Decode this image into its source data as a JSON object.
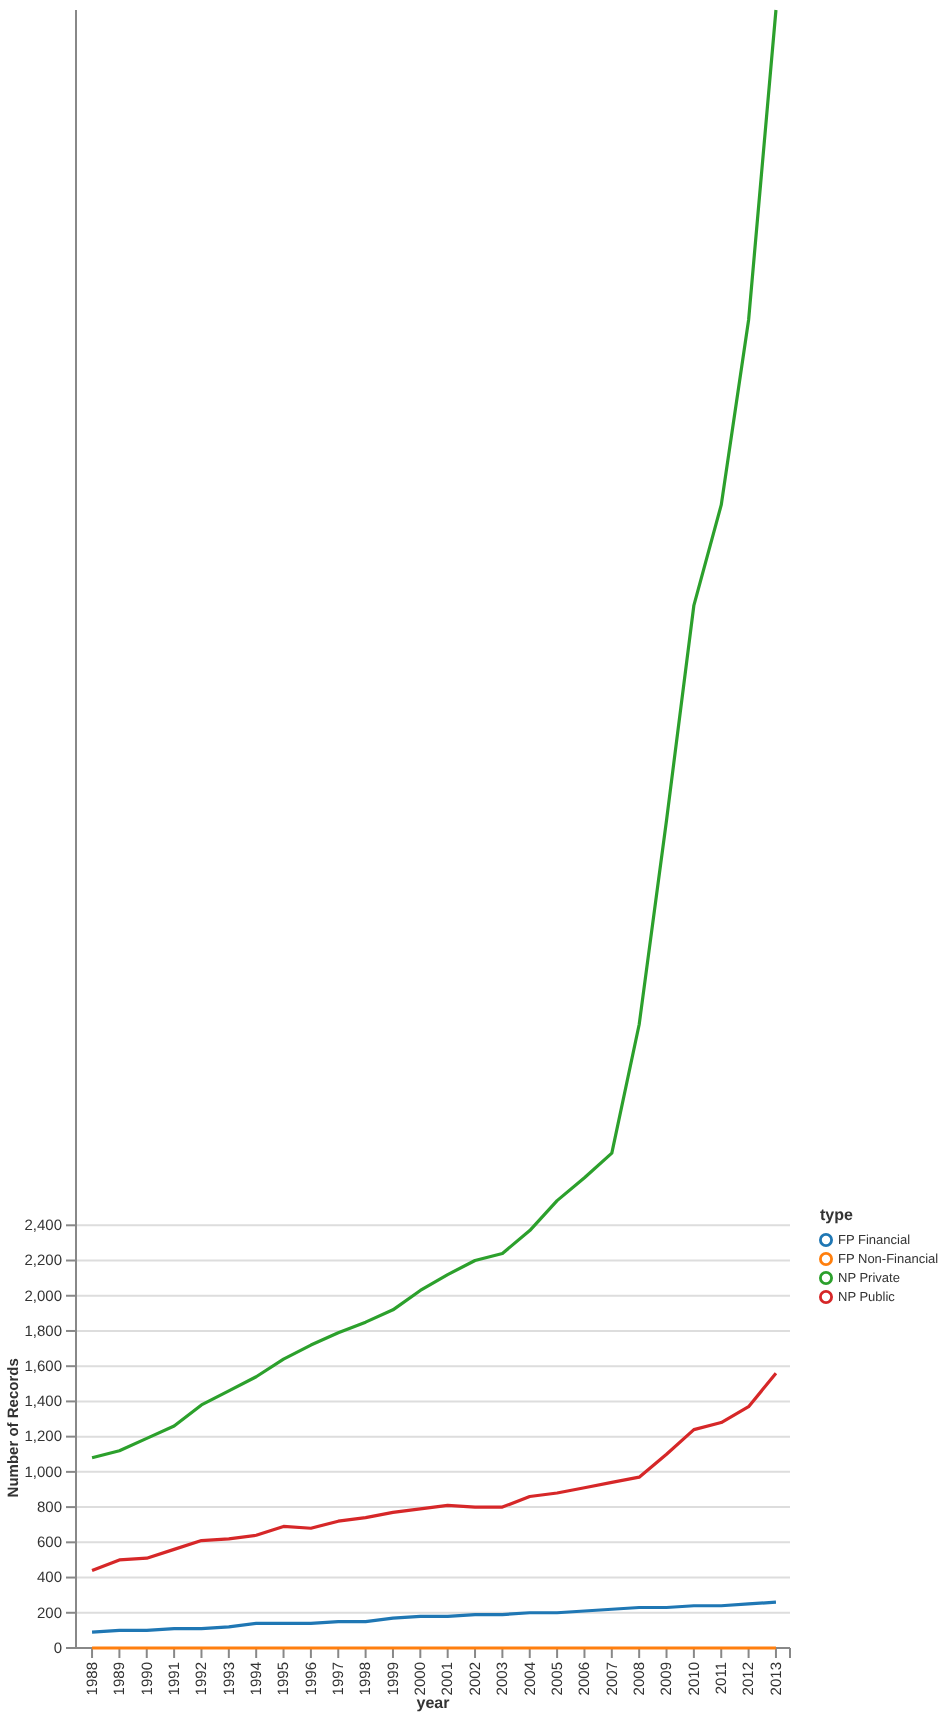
{
  "chart_data": {
    "type": "line",
    "xlabel": "year",
    "ylabel": "Number of Records",
    "legend_title": "type",
    "categories": [
      "1988",
      "1989",
      "1990",
      "1991",
      "1992",
      "1993",
      "1994",
      "1995",
      "1996",
      "1997",
      "1998",
      "1999",
      "2000",
      "2001",
      "2002",
      "2003",
      "2004",
      "2005",
      "2006",
      "2007",
      "2008",
      "2009",
      "2010",
      "2011",
      "2012",
      "2013"
    ],
    "series": [
      {
        "name": "FP Financial",
        "color": "#1f77b4",
        "values": [
          90,
          100,
          100,
          110,
          110,
          120,
          140,
          140,
          140,
          150,
          150,
          170,
          180,
          180,
          190,
          190,
          200,
          200,
          210,
          220,
          230,
          230,
          240,
          240,
          250,
          260
        ]
      },
      {
        "name": "FP Non-Financial",
        "color": "#ff7f0e",
        "values": [
          0,
          0,
          0,
          0,
          0,
          0,
          0,
          0,
          0,
          0,
          0,
          0,
          0,
          0,
          0,
          0,
          0,
          0,
          0,
          0,
          0,
          0,
          0,
          0,
          0,
          0
        ]
      },
      {
        "name": "NP Private",
        "color": "#2ca02c",
        "values": [
          1080,
          1120,
          1190,
          1260,
          1380,
          1460,
          1540,
          1640,
          1720,
          1790,
          1850,
          1920,
          2030,
          2120,
          2200,
          2240,
          2370,
          2540,
          2670,
          2810,
          3540,
          4700,
          5920,
          6490,
          7540,
          9300
        ]
      },
      {
        "name": "NP Public",
        "color": "#d62728",
        "values": [
          440,
          500,
          510,
          560,
          610,
          620,
          640,
          690,
          680,
          720,
          740,
          770,
          790,
          810,
          800,
          800,
          860,
          880,
          910,
          940,
          970,
          1100,
          1240,
          1280,
          1370,
          1560
        ]
      }
    ],
    "ylim": [
      0,
      9300
    ],
    "yticks": [
      {
        "value": 0,
        "label": "0"
      },
      {
        "value": 200,
        "label": "200"
      },
      {
        "value": 400,
        "label": "400"
      },
      {
        "value": 600,
        "label": "600"
      },
      {
        "value": 800,
        "label": "800"
      },
      {
        "value": 1000,
        "label": "1,000"
      },
      {
        "value": 1200,
        "label": "1,200"
      },
      {
        "value": 1400,
        "label": "1,400"
      },
      {
        "value": 1600,
        "label": "1,600"
      },
      {
        "value": 1800,
        "label": "1,800"
      },
      {
        "value": 2000,
        "label": "2,000"
      },
      {
        "value": 2200,
        "label": "2,200"
      },
      {
        "value": 2400,
        "label": "2,400"
      }
    ],
    "grid": "y",
    "legend": "bottom right",
    "marker": "none",
    "line_style": "solid"
  }
}
